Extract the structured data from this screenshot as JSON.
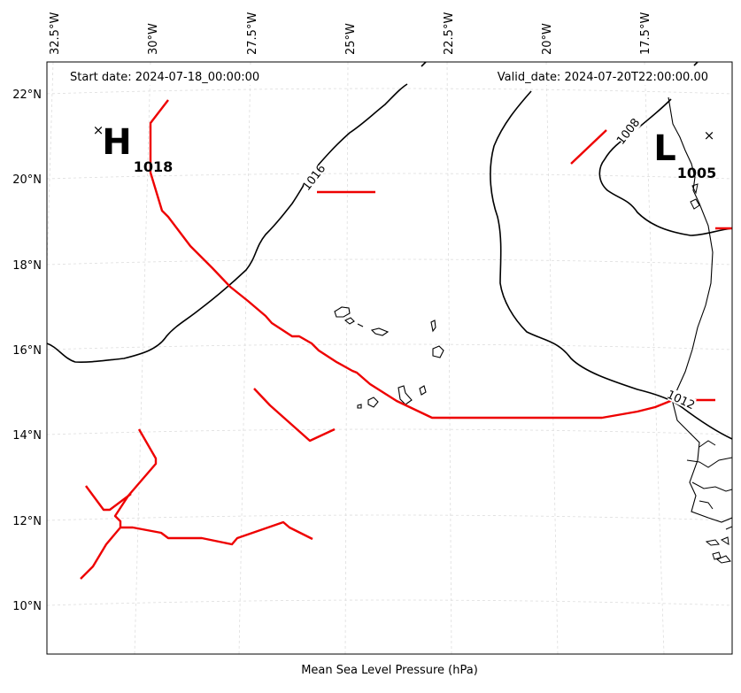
{
  "header": {
    "start_date": "Start date: 2024-07-18_00:00:00",
    "valid_date": "Valid_date: 2024-07-20T22:00:00.00"
  },
  "footer": {
    "title": "Mean Sea Level Pressure (hPa)"
  },
  "axes": {
    "lon_labels": [
      "32.5°W",
      "30°W",
      "27.5°W",
      "25°W",
      "22.5°W",
      "20°W",
      "17.5°W"
    ],
    "lat_labels": [
      "22°N",
      "20°N",
      "18°N",
      "16°N",
      "14°N",
      "12°N",
      "10°N"
    ]
  },
  "pressure_centers": {
    "high": {
      "symbol": "H",
      "value": "1018"
    },
    "low": {
      "symbol": "L",
      "value": "1005"
    }
  },
  "isobars": [
    {
      "label": "1016"
    },
    {
      "label": "1008"
    },
    {
      "label": "1012"
    }
  ],
  "colors": {
    "isobar": "#000000",
    "trough": "#ee0000",
    "coastline": "#000000",
    "grid": "#dddddd"
  },
  "grid": true
}
